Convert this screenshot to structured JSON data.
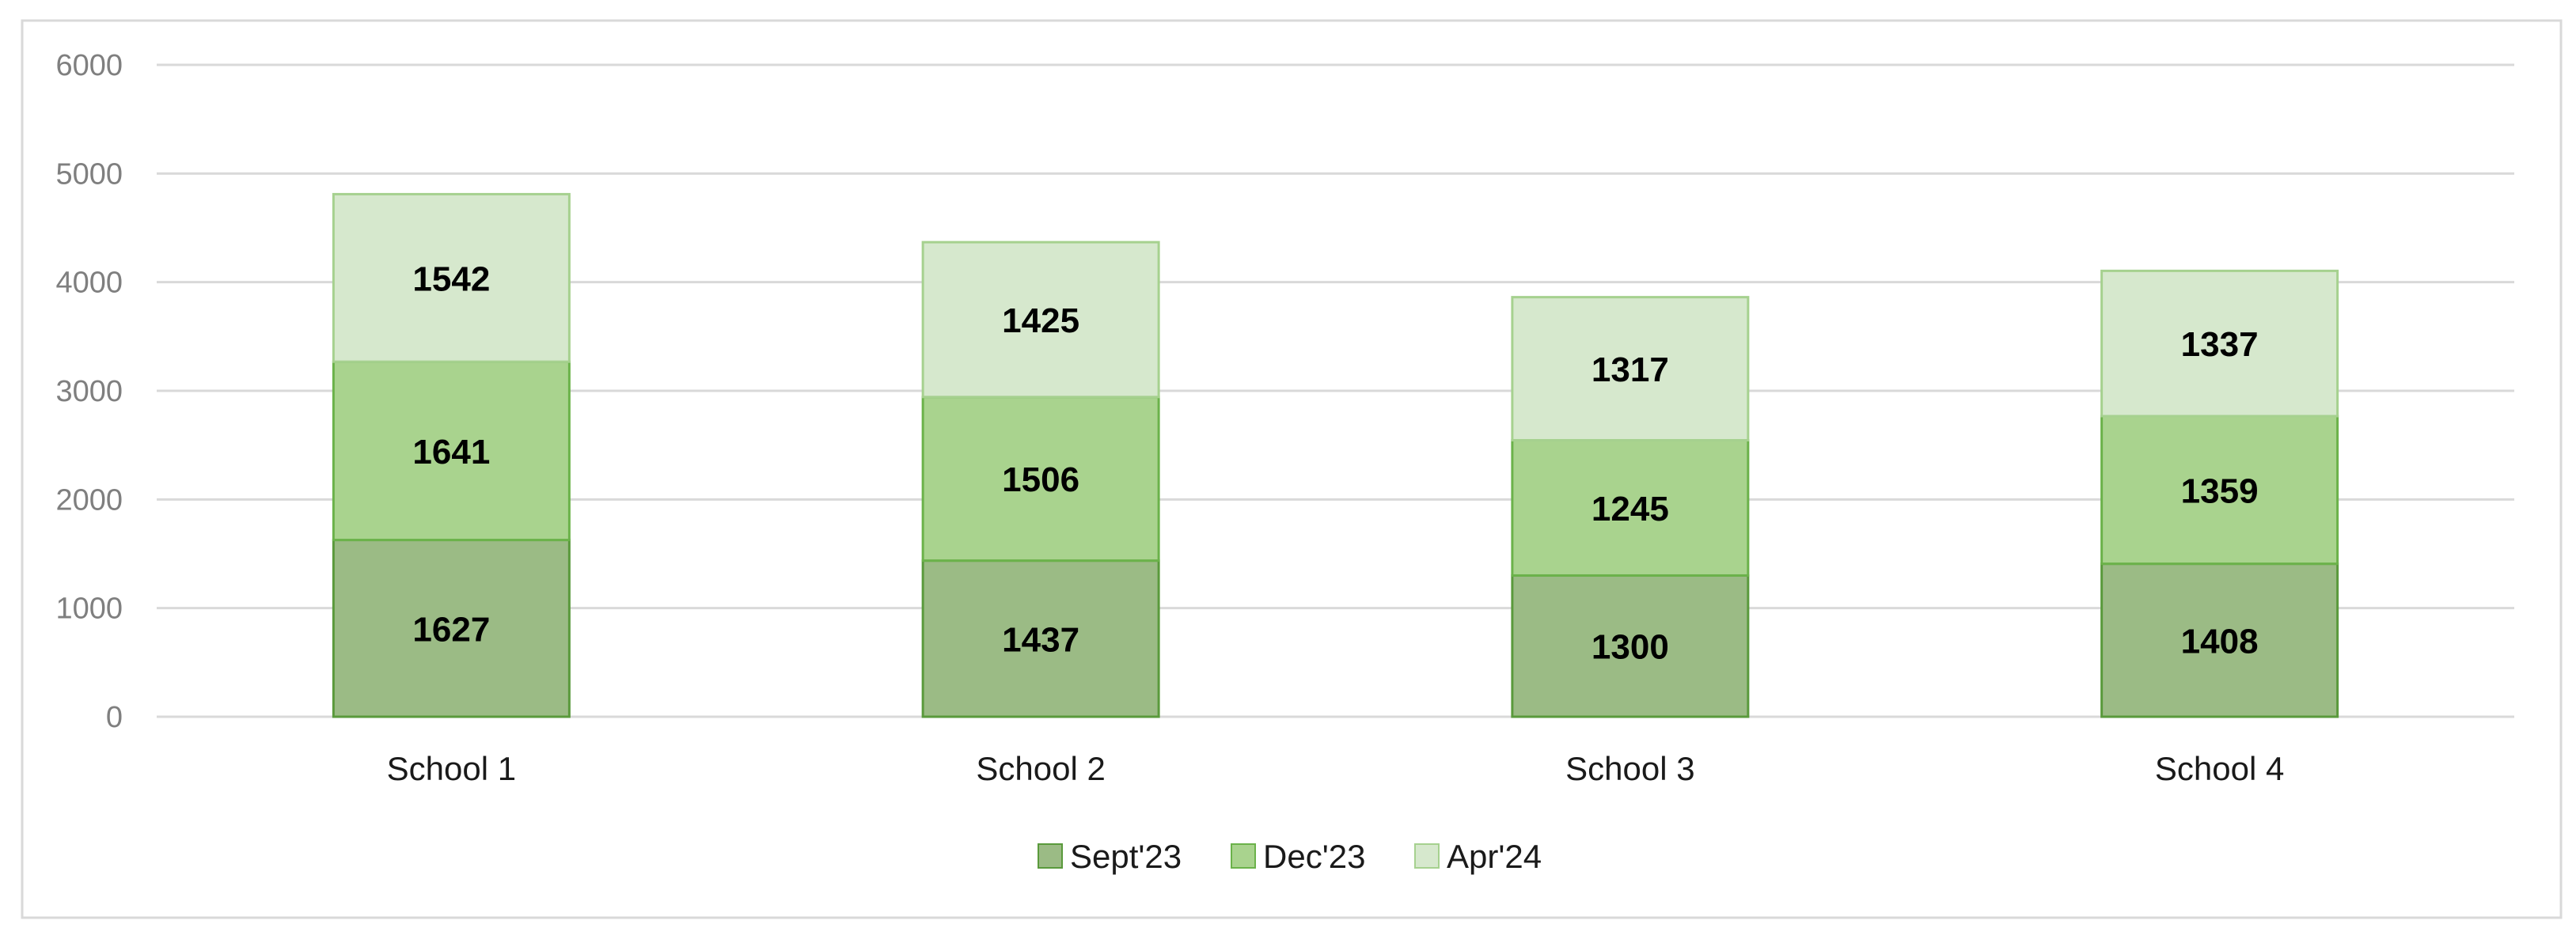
{
  "chart_data": {
    "type": "bar",
    "stacked": true,
    "title": "",
    "xlabel": "",
    "ylabel": "",
    "categories": [
      "School 1",
      "School 2",
      "School 3",
      "School 4"
    ],
    "series": [
      {
        "name": "Sept'23",
        "values": [
          1627,
          1437,
          1300,
          1408
        ],
        "color": "#9bbb85",
        "border": "#5a9a3c"
      },
      {
        "name": "Dec'23",
        "values": [
          1641,
          1506,
          1245,
          1359
        ],
        "color": "#a9d38e",
        "border": "#6bb24a"
      },
      {
        "name": "Apr'24",
        "values": [
          1542,
          1425,
          1317,
          1337
        ],
        "color": "#d6e8cd",
        "border": "#a6d18f"
      }
    ],
    "ylim": [
      0,
      6000
    ],
    "yticks": [
      0,
      1000,
      2000,
      3000,
      4000,
      5000,
      6000
    ],
    "grid": true,
    "legend_position": "bottom",
    "data_labels": true
  }
}
